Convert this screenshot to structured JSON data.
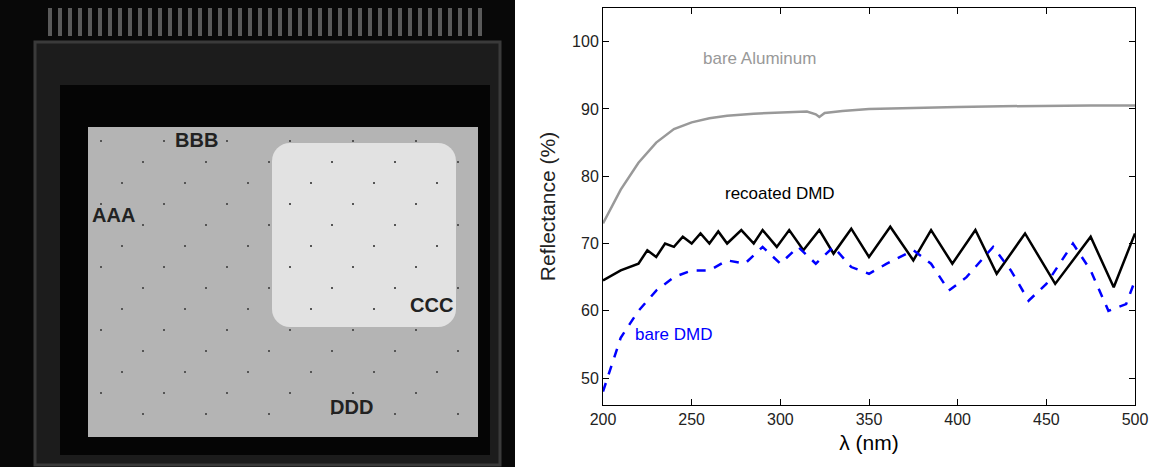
{
  "photo": {
    "labels": [
      "AAA",
      "BBB",
      "CCC",
      "DDD"
    ]
  },
  "chart_data": {
    "type": "line",
    "x_label": "λ (nm)",
    "y_label": "Reflectance (%)",
    "xlim": [
      200,
      500
    ],
    "xticks": [
      200,
      250,
      300,
      350,
      400,
      450,
      500
    ],
    "ylim": [
      46,
      105
    ],
    "yticks": [
      50,
      60,
      70,
      80,
      90,
      100
    ],
    "grid": false,
    "series": [
      {
        "name": "bare Aluminum",
        "color": "#999999",
        "line_style": "solid",
        "x": [
          200,
          210,
          220,
          230,
          240,
          250,
          260,
          270,
          285,
          300,
          315,
          320,
          322,
          325,
          335,
          350,
          375,
          400,
          425,
          450,
          475,
          500
        ],
        "values": [
          73,
          78,
          82,
          85,
          87,
          88,
          88.6,
          89,
          89.3,
          89.5,
          89.6,
          89.2,
          88.8,
          89.4,
          89.7,
          90,
          90.2,
          90.3,
          90.4,
          90.5,
          90.5,
          90.5
        ]
      },
      {
        "name": "recoated DMD",
        "color": "#000000",
        "line_style": "solid",
        "x": [
          200,
          210,
          220,
          225,
          230,
          235,
          240,
          245,
          250,
          255,
          260,
          265,
          270,
          278,
          285,
          290,
          298,
          305,
          313,
          322,
          330,
          340,
          350,
          362,
          375,
          385,
          397,
          410,
          422,
          438,
          455,
          475,
          488,
          500
        ],
        "values": [
          64.5,
          66,
          67,
          69,
          68,
          70,
          69.5,
          71,
          70,
          71.5,
          70,
          71.8,
          70,
          72,
          70,
          72,
          69.5,
          72,
          69,
          72,
          68.5,
          72.2,
          68,
          72.5,
          67.5,
          72,
          67,
          72,
          65.5,
          71.5,
          64,
          71,
          63.5,
          71.5
        ]
      },
      {
        "name": "bare DMD",
        "color": "#0000ff",
        "line_style": "dash",
        "x": [
          200,
          205,
          210,
          220,
          230,
          240,
          250,
          260,
          270,
          280,
          290,
          300,
          310,
          320,
          330,
          340,
          350,
          360,
          375,
          385,
          395,
          405,
          420,
          430,
          440,
          450,
          465,
          475,
          485,
          495,
          500
        ],
        "values": [
          48,
          52,
          56,
          60,
          63,
          65,
          66,
          66,
          67.5,
          67,
          69.5,
          67,
          69.5,
          67,
          69.5,
          66.5,
          65.5,
          67,
          69,
          67,
          63,
          65,
          69.5,
          66,
          61.5,
          64,
          70,
          66,
          60,
          61,
          64.5
        ]
      }
    ],
    "annotations": [
      {
        "text": "bare Aluminum",
        "x": 288,
        "y": 97.5,
        "color": "#999999"
      },
      {
        "text": "recoated DMD",
        "x": 300,
        "y": 77.5,
        "color": "#000000"
      },
      {
        "text": "bare DMD",
        "x": 240,
        "y": 56.5,
        "color": "#0000ff"
      }
    ]
  }
}
